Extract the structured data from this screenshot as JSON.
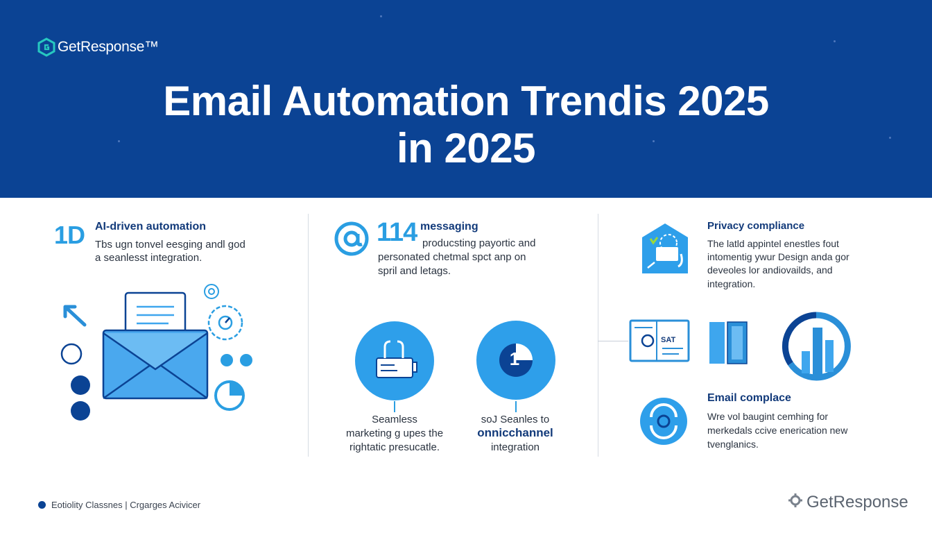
{
  "brand": {
    "logo_text": "GetResponse™",
    "footer_logo_text": "GetResponse"
  },
  "hero": {
    "title_line1": "Email Automation Trendis 2025",
    "title_line2": "in 2025"
  },
  "left_column": {
    "badge": "1D",
    "title": "AI-driven automation",
    "text_line1": "Tbs ugn tonvel eesging andl god",
    "text_line2": "a seanlesst integration."
  },
  "middle_column": {
    "big_number": "114",
    "title": "messaging",
    "text_line1": "producsting payortic and",
    "text_line2": "personated chetmal spct anp on",
    "text_line3": "spril and letags.",
    "circle_right_number": "1",
    "caption_left_line1": "Seamless",
    "caption_left_line2": "marketing g upes the",
    "caption_left_line3": "rightatic presucatle.",
    "caption_right_line1": "soJ Seanles to",
    "caption_right_line2": "onnicchannel",
    "caption_right_line3": "integration"
  },
  "right_column": {
    "title1": "Privacy compliance",
    "text1_line1": "The latld appintel enestles fout",
    "text1_line2": "intomentig ywur Design anda gor",
    "text1_line3": "deveoles lor andiovailds, and",
    "text1_line4": "integration.",
    "card_label": "SAT",
    "title2": "Email complace",
    "text2_line1": "Wre vol baugint cemhing for",
    "text2_line2": "merkedals ccive enerication new",
    "text2_line3": "tvenglanics."
  },
  "footer": {
    "left_text": "Eotiolity Classnes | Crgarges Acivicer"
  },
  "colors": {
    "hero_bg": "#0b4394",
    "accent": "#2a9ee2",
    "dark_blue": "#0b4394",
    "light_blue": "#3ea6ee"
  }
}
